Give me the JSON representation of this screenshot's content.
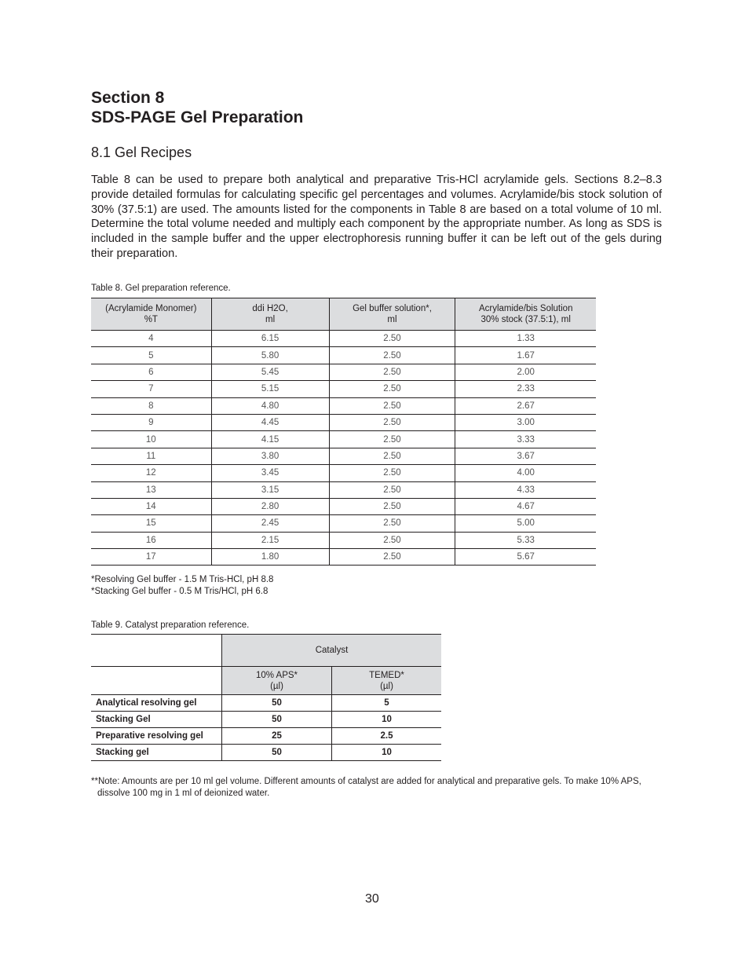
{
  "section": {
    "line1": "Section 8",
    "line2": "SDS-PAGE Gel Preparation"
  },
  "subsection": "8.1  Gel Recipes",
  "body": "Table 8 can be used to prepare both analytical and preparative Tris-HCl acrylamide gels. Sections 8.2–8.3 provide detailed formulas for calculating specific gel percentages and volumes. Acrylamide/bis stock solution of 30% (37.5:1) are used. The amounts listed for the components in Table 8 are based on a total volume of 10 ml. Determine the total volume needed and multiply each component by the appropriate number. As long as SDS is included in the sample buffer and the upper electrophoresis running buffer it can be left out of the gels during their preparation.",
  "table8": {
    "caption": "Table 8. Gel preparation reference.",
    "headers": [
      [
        "(Acrylamide Monomer)",
        "%T"
      ],
      [
        "ddi H2O,",
        "ml"
      ],
      [
        "Gel buffer solution*,",
        "ml"
      ],
      [
        "Acrylamide/bis Solution",
        "30% stock (37.5:1), ml"
      ]
    ],
    "rows": [
      [
        "4",
        "6.15",
        "2.50",
        "1.33"
      ],
      [
        "5",
        "5.80",
        "2.50",
        "1.67"
      ],
      [
        "6",
        "5.45",
        "2.50",
        "2.00"
      ],
      [
        "7",
        "5.15",
        "2.50",
        "2.33"
      ],
      [
        "8",
        "4.80",
        "2.50",
        "2.67"
      ],
      [
        "9",
        "4.45",
        "2.50",
        "3.00"
      ],
      [
        "10",
        "4.15",
        "2.50",
        "3.33"
      ],
      [
        "11",
        "3.80",
        "2.50",
        "3.67"
      ],
      [
        "12",
        "3.45",
        "2.50",
        "4.00"
      ],
      [
        "13",
        "3.15",
        "2.50",
        "4.33"
      ],
      [
        "14",
        "2.80",
        "2.50",
        "4.67"
      ],
      [
        "15",
        "2.45",
        "2.50",
        "5.00"
      ],
      [
        "16",
        "2.15",
        "2.50",
        "5.33"
      ],
      [
        "17",
        "1.80",
        "2.50",
        "5.67"
      ]
    ],
    "footnotes": [
      "*Resolving Gel buffer - 1.5 M Tris-HCl, pH 8.8",
      "*Stacking Gel buffer - 0.5 M Tris/HCl, pH 6.8"
    ]
  },
  "table9": {
    "caption": "Table 9. Catalyst preparation reference.",
    "group_header": "Catalyst",
    "headers": [
      [
        "10% APS*",
        "(µl)"
      ],
      [
        "TEMED*",
        "(µl)"
      ]
    ],
    "rows": [
      [
        "Analytical resolving gel",
        "50",
        "5"
      ],
      [
        "Stacking Gel",
        "50",
        "10"
      ],
      [
        "Preparative resolving gel",
        "25",
        "2.5"
      ],
      [
        "Stacking gel",
        "50",
        "10"
      ]
    ],
    "note": "**Note:  Amounts are per 10 ml gel volume. Different amounts of catalyst are added for analytical and preparative gels. To make 10% APS, dissolve 100 mg in 1 ml of deionized water."
  },
  "page_number": "30"
}
